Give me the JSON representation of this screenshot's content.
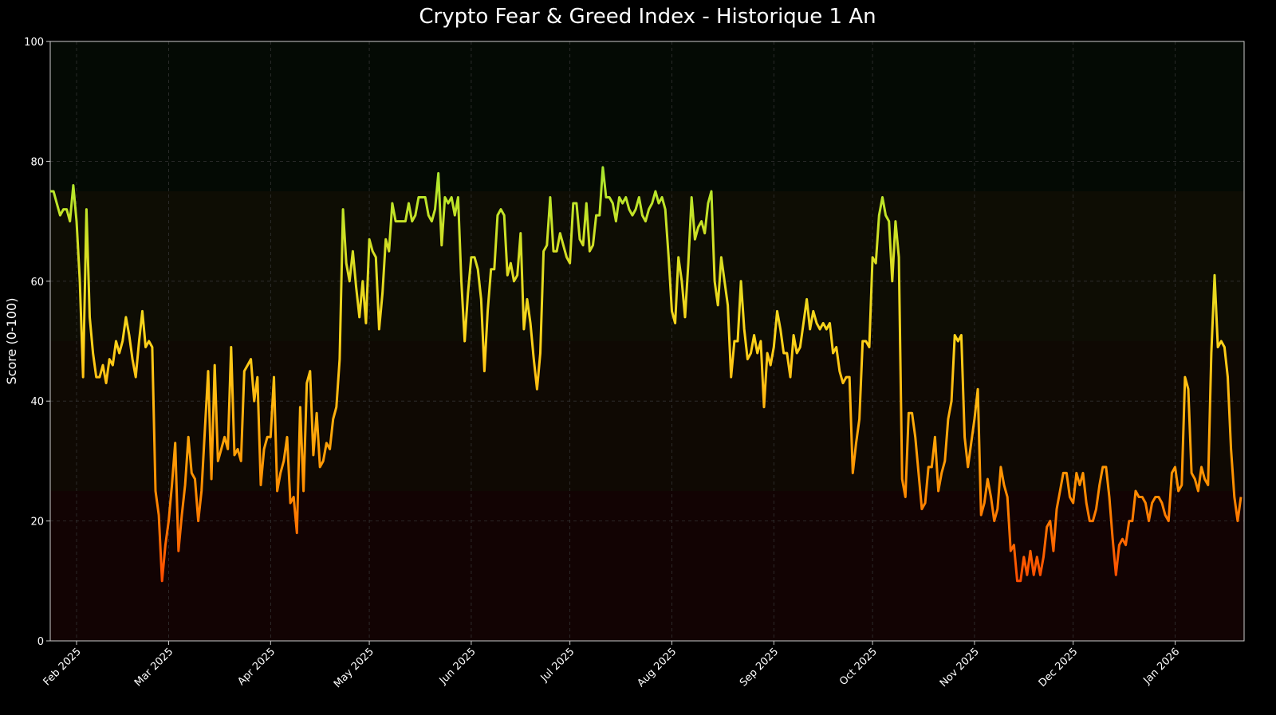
{
  "chart_data": {
    "type": "line",
    "title": "Crypto Fear & Greed Index - Historique 1 An",
    "y_label": "Score (0-100)",
    "categories": [
      null,
      null,
      null,
      null,
      null,
      null,
      null,
      null,
      "Feb 2025",
      null,
      null,
      null,
      null,
      null,
      null,
      null,
      null,
      null,
      null,
      null,
      null,
      null,
      null,
      null,
      null,
      null,
      null,
      null,
      null,
      null,
      null,
      null,
      null,
      null,
      null,
      null,
      "Mar 2025",
      null,
      null,
      null,
      null,
      null,
      null,
      null,
      null,
      null,
      null,
      null,
      null,
      null,
      null,
      null,
      null,
      null,
      null,
      null,
      null,
      null,
      null,
      null,
      null,
      null,
      null,
      null,
      null,
      null,
      null,
      "Apr 2025",
      null,
      null,
      null,
      null,
      null,
      null,
      null,
      null,
      null,
      null,
      null,
      null,
      null,
      null,
      null,
      null,
      null,
      null,
      null,
      null,
      null,
      null,
      null,
      null,
      null,
      null,
      null,
      null,
      null,
      "May 2025",
      null,
      null,
      null,
      null,
      null,
      null,
      null,
      null,
      null,
      null,
      null,
      null,
      null,
      null,
      null,
      null,
      null,
      null,
      null,
      null,
      null,
      null,
      null,
      null,
      null,
      null,
      null,
      null,
      null,
      null,
      "Jun 2025",
      null,
      null,
      null,
      null,
      null,
      null,
      null,
      null,
      null,
      null,
      null,
      null,
      null,
      null,
      null,
      null,
      null,
      null,
      null,
      null,
      null,
      null,
      null,
      null,
      null,
      null,
      null,
      null,
      null,
      "Jul 2025",
      null,
      null,
      null,
      null,
      null,
      null,
      null,
      null,
      null,
      null,
      null,
      null,
      null,
      null,
      null,
      null,
      null,
      null,
      null,
      null,
      null,
      null,
      null,
      null,
      null,
      null,
      null,
      null,
      null,
      null,
      "Aug 2025",
      null,
      null,
      null,
      null,
      null,
      null,
      null,
      null,
      null,
      null,
      null,
      null,
      null,
      null,
      null,
      null,
      null,
      null,
      null,
      null,
      null,
      null,
      null,
      null,
      null,
      null,
      null,
      null,
      null,
      null,
      "Sep 2025",
      null,
      null,
      null,
      null,
      null,
      null,
      null,
      null,
      null,
      null,
      null,
      null,
      null,
      null,
      null,
      null,
      null,
      null,
      null,
      null,
      null,
      null,
      null,
      null,
      null,
      null,
      null,
      null,
      null,
      "Oct 2025",
      null,
      null,
      null,
      null,
      null,
      null,
      null,
      null,
      null,
      null,
      null,
      null,
      null,
      null,
      null,
      null,
      null,
      null,
      null,
      null,
      null,
      null,
      null,
      null,
      null,
      null,
      null,
      null,
      null,
      null,
      "Nov 2025",
      null,
      null,
      null,
      null,
      null,
      null,
      null,
      null,
      null,
      null,
      null,
      null,
      null,
      null,
      null,
      null,
      null,
      null,
      null,
      null,
      null,
      null,
      null,
      null,
      null,
      null,
      null,
      null,
      null,
      "Dec 2025",
      null,
      null,
      null,
      null,
      null,
      null,
      null,
      null,
      null,
      null,
      null,
      null,
      null,
      null,
      null,
      null,
      null,
      null,
      null,
      null,
      null,
      null,
      null,
      null,
      null,
      null,
      null,
      null,
      null,
      null,
      "Jan 2026",
      null,
      null,
      null,
      null,
      null,
      null,
      null,
      null,
      null,
      null,
      null,
      null,
      null,
      null,
      null,
      null,
      null,
      null,
      null,
      null
    ],
    "values": [
      75,
      75,
      73,
      71,
      72,
      72,
      70,
      76,
      70,
      60,
      44,
      72,
      54,
      48,
      44,
      44,
      46,
      43,
      47,
      46,
      50,
      48,
      50,
      54,
      51,
      47,
      44,
      50,
      55,
      49,
      50,
      49,
      25,
      21,
      10,
      16,
      20,
      26,
      33,
      15,
      21,
      26,
      34,
      28,
      27,
      20,
      25,
      35,
      45,
      27,
      46,
      30,
      32,
      34,
      32,
      49,
      31,
      32,
      30,
      45,
      46,
      47,
      40,
      44,
      26,
      32,
      34,
      34,
      44,
      25,
      28,
      30,
      34,
      23,
      24,
      18,
      39,
      25,
      43,
      45,
      31,
      38,
      29,
      30,
      33,
      32,
      37,
      39,
      47,
      72,
      63,
      60,
      65,
      59,
      54,
      60,
      53,
      67,
      65,
      64,
      52,
      58,
      67,
      65,
      73,
      70,
      70,
      70,
      70,
      73,
      70,
      71,
      74,
      74,
      74,
      71,
      70,
      72,
      78,
      66,
      74,
      73,
      74,
      71,
      74,
      60,
      50,
      58,
      64,
      64,
      62,
      57,
      45,
      55,
      62,
      62,
      71,
      72,
      71,
      61,
      63,
      60,
      61,
      68,
      52,
      57,
      53,
      47,
      42,
      48,
      65,
      66,
      74,
      65,
      65,
      68,
      66,
      64,
      63,
      73,
      73,
      67,
      66,
      73,
      65,
      66,
      71,
      71,
      79,
      74,
      74,
      73,
      70,
      74,
      73,
      74,
      72,
      71,
      72,
      74,
      71,
      70,
      72,
      73,
      75,
      73,
      74,
      72,
      64,
      55,
      53,
      64,
      60,
      54,
      63,
      74,
      67,
      69,
      70,
      68,
      73,
      75,
      60,
      56,
      64,
      60,
      56,
      44,
      50,
      50,
      60,
      52,
      47,
      48,
      51,
      48,
      50,
      39,
      48,
      46,
      49,
      55,
      52,
      48,
      48,
      44,
      51,
      48,
      49,
      53,
      57,
      52,
      55,
      53,
      52,
      53,
      52,
      53,
      48,
      49,
      45,
      43,
      44,
      44,
      28,
      33,
      37,
      50,
      50,
      49,
      64,
      63,
      71,
      74,
      71,
      70,
      60,
      70,
      64,
      27,
      24,
      38,
      38,
      34,
      28,
      22,
      23,
      29,
      29,
      34,
      25,
      28,
      30,
      37,
      40,
      51,
      50,
      51,
      34,
      29,
      33,
      37,
      42,
      21,
      23,
      27,
      24,
      20,
      22,
      29,
      26,
      24,
      15,
      16,
      10,
      10,
      14,
      11,
      15,
      11,
      14,
      11,
      14,
      19,
      20,
      15,
      22,
      25,
      28,
      28,
      24,
      23,
      28,
      26,
      28,
      23,
      20,
      20,
      22,
      26,
      29,
      29,
      24,
      17,
      11,
      16,
      17,
      16,
      20,
      20,
      25,
      24,
      24,
      23,
      20,
      23,
      24,
      24,
      23,
      21,
      20,
      28,
      29,
      25,
      26,
      44,
      42,
      28,
      27,
      25,
      29,
      27,
      26,
      48,
      61,
      49,
      50,
      49,
      44,
      32,
      24,
      20,
      24
    ],
    "color_stops": [
      {
        "value": 0,
        "color": "#ff2200"
      },
      {
        "value": 25,
        "color": "#ff8c00"
      },
      {
        "value": 50,
        "color": "#ffd21a"
      },
      {
        "value": 75,
        "color": "#b8e62a"
      },
      {
        "value": 100,
        "color": "#44dd44"
      }
    ],
    "bands": [
      {
        "from": 0,
        "to": 25,
        "color": "#120303"
      },
      {
        "from": 25,
        "to": 50,
        "color": "#0f0903"
      },
      {
        "from": 50,
        "to": 75,
        "color": "#0e0d04"
      },
      {
        "from": 75,
        "to": 100,
        "color": "#040a04"
      }
    ],
    "ylim": [
      0,
      100
    ],
    "yticks": [
      0,
      20,
      40,
      60,
      80,
      100
    ],
    "grid": true
  }
}
